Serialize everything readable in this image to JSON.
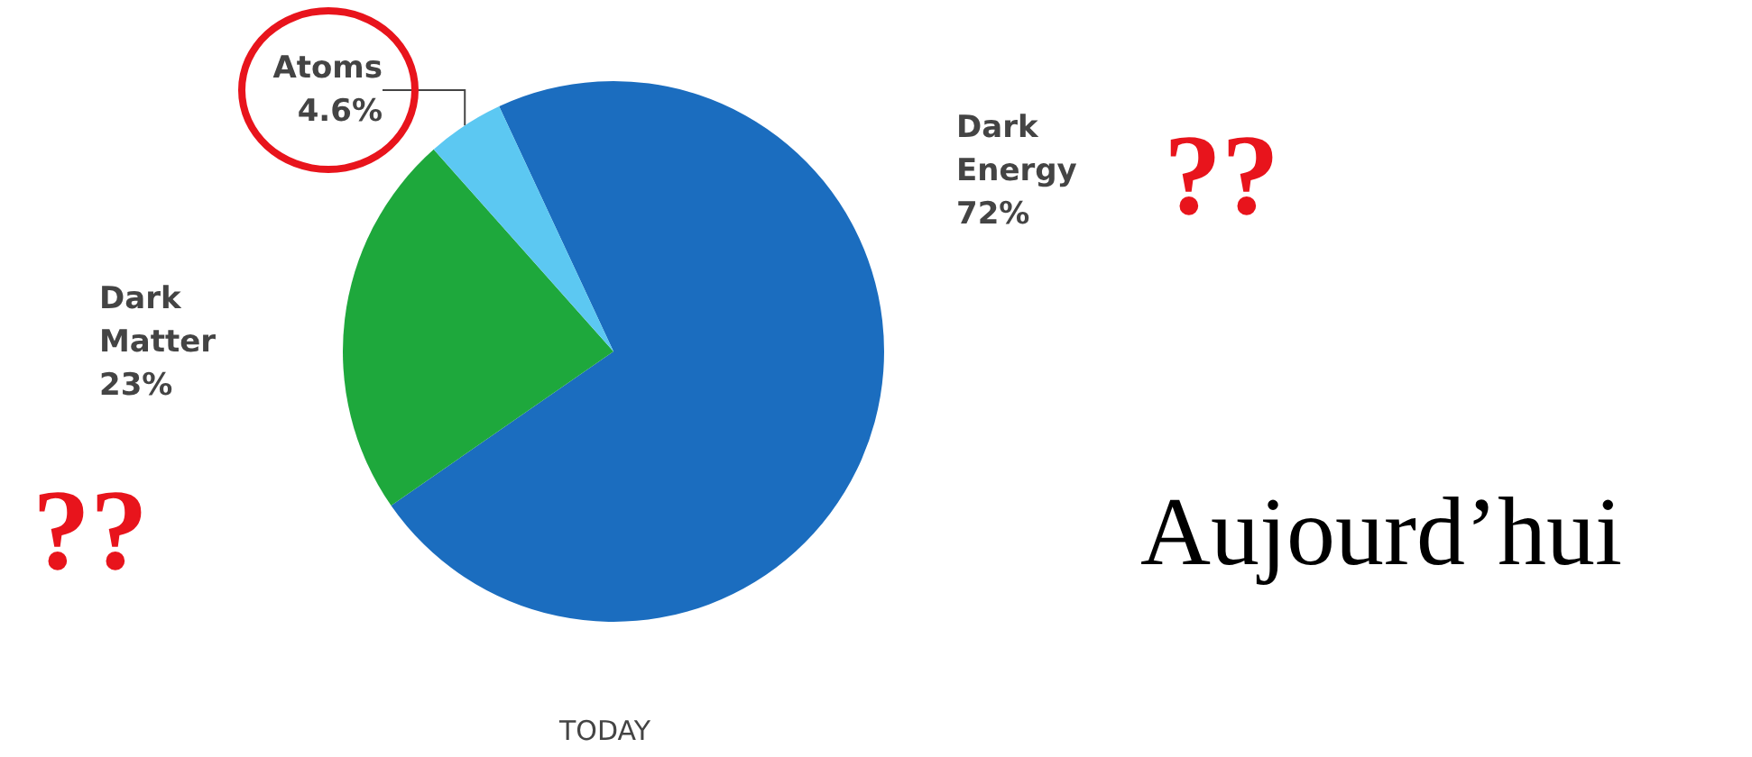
{
  "chart_data": {
    "type": "pie",
    "categories": [
      "Dark Energy",
      "Dark Matter",
      "Atoms"
    ],
    "values": [
      72,
      23,
      4.6
    ],
    "value_labels": [
      "72%",
      "23%",
      "4.6%"
    ],
    "colors": [
      "#1b6dbf",
      "#1ea83c",
      "#5cc8f2"
    ],
    "annotations": [
      "??",
      "??",
      "Aujourd’hui",
      "TODAY"
    ]
  }
}
